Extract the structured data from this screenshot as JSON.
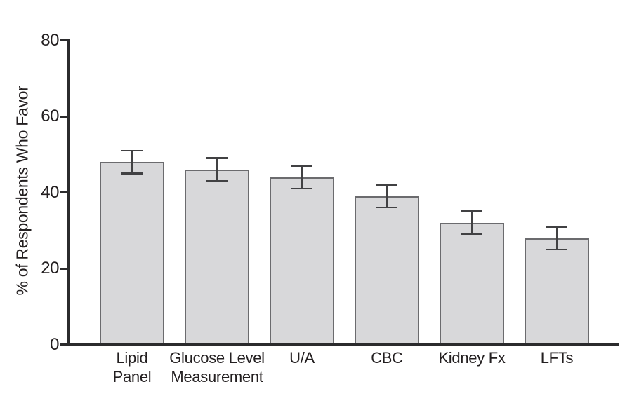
{
  "chart_data": {
    "type": "bar",
    "title": "",
    "ylabel": "% of Respondents Who Favor",
    "xlabel": "",
    "ylim": [
      0,
      80
    ],
    "yticks": [
      0,
      20,
      40,
      60,
      80
    ],
    "grid": false,
    "legend": false,
    "categories": [
      "Lipid\nPanel",
      "Glucose Level\nMeasurement",
      "U/A",
      "CBC",
      "Kidney Fx",
      "LFTs"
    ],
    "values": [
      48,
      46,
      44,
      39,
      32,
      28
    ],
    "error_low": [
      45,
      43,
      41,
      36,
      29,
      25
    ],
    "error_high": [
      51,
      49,
      47,
      42,
      35,
      31
    ],
    "colors": {
      "bar_fill": "#d8d8da",
      "bar_border": "#6b6b6e",
      "error_bar": "#414143",
      "axis": "#2b2b2d",
      "text": "#231f20",
      "background": "#ffffff"
    }
  }
}
